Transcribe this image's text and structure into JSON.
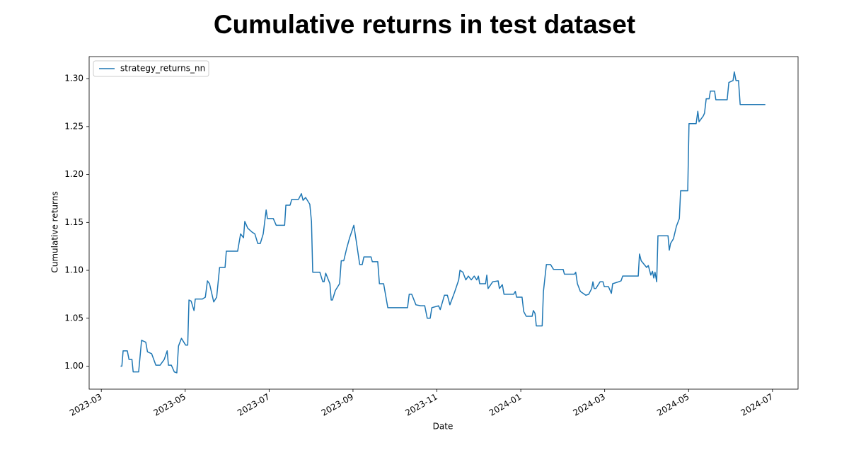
{
  "chart_data": {
    "type": "line",
    "title": "Cumulative returns in test dataset",
    "xlabel": "Date",
    "ylabel": "Cumulative returns",
    "legend": "upper left",
    "xlim": [
      2.71,
      19.61
    ],
    "xticks": [
      {
        "value": 3,
        "label": "2023-03"
      },
      {
        "value": 5,
        "label": "2023-05"
      },
      {
        "value": 7,
        "label": "2023-07"
      },
      {
        "value": 9,
        "label": "2023-09"
      },
      {
        "value": 11,
        "label": "2023-11"
      },
      {
        "value": 13,
        "label": "2024-01"
      },
      {
        "value": 15,
        "label": "2024-03"
      },
      {
        "value": 17,
        "label": "2024-05"
      },
      {
        "value": 19,
        "label": "2024-07"
      }
    ],
    "ylim": [
      0.976,
      1.323
    ],
    "yticks": [
      {
        "value": 1,
        "label": "1.00"
      },
      1.05,
      {
        "value": 1.1,
        "label": "1.10"
      },
      1.15,
      {
        "value": 1.2,
        "label": "1.20"
      },
      1.25,
      {
        "value": 1.3,
        "label": "1.30"
      }
    ],
    "x": [
      3.46,
      3.49,
      3.52,
      3.62,
      3.66,
      3.73,
      3.76,
      3.89,
      3.96,
      4.06,
      4.1,
      4.2,
      4.3,
      4.4,
      4.5,
      4.57,
      4.6,
      4.67,
      4.74,
      4.8,
      4.84,
      4.91,
      5.01,
      5.06,
      5.09,
      5.14,
      5.21,
      5.24,
      5.41,
      5.48,
      5.53,
      5.58,
      5.68,
      5.75,
      5.82,
      5.95,
      5.98,
      6.25,
      6.32,
      6.39,
      6.42,
      6.49,
      6.59,
      6.66,
      6.73,
      6.79,
      6.86,
      6.93,
      6.96,
      7.1,
      7.17,
      7.37,
      7.4,
      7.5,
      7.54,
      7.7,
      7.77,
      7.81,
      7.87,
      7.97,
      8.01,
      8.04,
      8.21,
      8.28,
      8.31,
      8.35,
      8.45,
      8.48,
      8.51,
      8.58,
      8.68,
      8.72,
      8.78,
      8.85,
      8.92,
      8.99,
      9.02,
      9.09,
      9.16,
      9.22,
      9.26,
      9.43,
      9.46,
      9.59,
      9.63,
      9.73,
      9.83,
      10.3,
      10.34,
      10.4,
      10.5,
      10.61,
      10.71,
      10.77,
      10.84,
      10.88,
      11.04,
      11.08,
      11.18,
      11.25,
      11.31,
      11.42,
      11.52,
      11.55,
      11.62,
      11.69,
      11.75,
      11.82,
      11.89,
      11.95,
      11.99,
      12.02,
      12.16,
      12.19,
      12.22,
      12.33,
      12.46,
      12.49,
      12.56,
      12.6,
      12.83,
      12.87,
      12.9,
      13.03,
      13.07,
      13.13,
      13.27,
      13.3,
      13.34,
      13.37,
      13.51,
      13.54,
      13.61,
      13.71,
      13.78,
      14.01,
      14.04,
      14.28,
      14.31,
      14.35,
      14.42,
      14.55,
      14.62,
      14.69,
      14.72,
      14.75,
      14.79,
      14.89,
      14.96,
      14.99,
      15.09,
      15.16,
      15.19,
      15.33,
      15.39,
      15.43,
      15.8,
      15.83,
      15.87,
      16.0,
      16.04,
      16.1,
      16.14,
      16.17,
      16.2,
      16.24,
      16.27,
      16.51,
      16.54,
      16.57,
      16.64,
      16.71,
      16.78,
      16.81,
      16.98,
      17.01,
      17.18,
      17.22,
      17.25,
      17.35,
      17.38,
      17.42,
      17.49,
      17.52,
      17.62,
      17.65,
      17.92,
      17.96,
      18.06,
      18.09,
      18.13,
      18.19,
      18.23,
      18.83
    ],
    "series": [
      {
        "name": "strategy_returns_nn",
        "color": "#1f77b4",
        "values": [
          1.0,
          1.0,
          1.016,
          1.016,
          1.007,
          1.007,
          0.994,
          0.994,
          1.027,
          1.025,
          1.015,
          1.013,
          1.001,
          1.001,
          1.007,
          1.016,
          1.001,
          1.001,
          0.994,
          0.993,
          1.021,
          1.029,
          1.022,
          1.022,
          1.069,
          1.068,
          1.058,
          1.07,
          1.07,
          1.072,
          1.089,
          1.086,
          1.067,
          1.072,
          1.103,
          1.103,
          1.12,
          1.12,
          1.138,
          1.134,
          1.151,
          1.144,
          1.14,
          1.138,
          1.128,
          1.128,
          1.138,
          1.163,
          1.154,
          1.154,
          1.147,
          1.147,
          1.168,
          1.168,
          1.174,
          1.174,
          1.18,
          1.173,
          1.176,
          1.169,
          1.151,
          1.098,
          1.098,
          1.088,
          1.088,
          1.097,
          1.086,
          1.069,
          1.069,
          1.079,
          1.086,
          1.11,
          1.11,
          1.123,
          1.134,
          1.143,
          1.147,
          1.127,
          1.106,
          1.106,
          1.114,
          1.114,
          1.109,
          1.109,
          1.086,
          1.086,
          1.061,
          1.061,
          1.075,
          1.075,
          1.064,
          1.063,
          1.063,
          1.05,
          1.05,
          1.061,
          1.063,
          1.059,
          1.074,
          1.074,
          1.064,
          1.077,
          1.09,
          1.1,
          1.098,
          1.09,
          1.094,
          1.09,
          1.094,
          1.09,
          1.094,
          1.086,
          1.086,
          1.095,
          1.081,
          1.088,
          1.089,
          1.081,
          1.085,
          1.075,
          1.075,
          1.078,
          1.072,
          1.072,
          1.057,
          1.052,
          1.052,
          1.058,
          1.055,
          1.042,
          1.042,
          1.078,
          1.106,
          1.106,
          1.101,
          1.101,
          1.096,
          1.096,
          1.098,
          1.086,
          1.078,
          1.074,
          1.075,
          1.081,
          1.088,
          1.081,
          1.081,
          1.088,
          1.088,
          1.083,
          1.083,
          1.076,
          1.086,
          1.088,
          1.089,
          1.094,
          1.094,
          1.117,
          1.11,
          1.103,
          1.105,
          1.095,
          1.099,
          1.092,
          1.098,
          1.088,
          1.136,
          1.136,
          1.121,
          1.128,
          1.133,
          1.146,
          1.154,
          1.183,
          1.183,
          1.253,
          1.253,
          1.266,
          1.255,
          1.261,
          1.264,
          1.279,
          1.279,
          1.287,
          1.287,
          1.278,
          1.278,
          1.296,
          1.298,
          1.307,
          1.298,
          1.298,
          1.273,
          1.273
        ]
      }
    ]
  }
}
